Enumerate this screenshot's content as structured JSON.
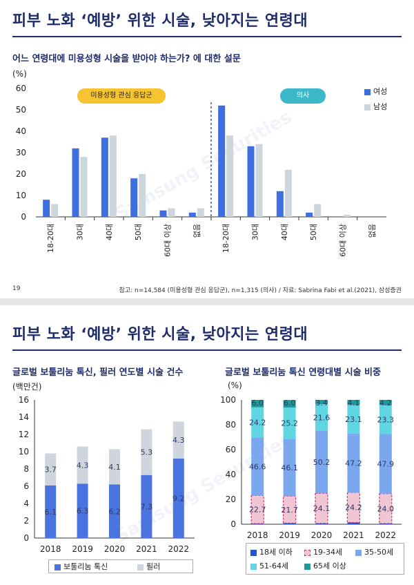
{
  "slide1": {
    "title": "피부 노화 ‘예방’ 위한 시술, 낮아지는 연령대",
    "page_number": "19",
    "footnote": "참고: n=14,584 (미용성형 관심 응답군), n=1,315 (의사) / 자료: Sabrina Fabi et al.(2021), 삼성증권",
    "watermark": "Samsung Securities"
  },
  "slide2": {
    "title": "피부 노화 ‘예방’ 위한 시술, 낮아지는 연령대",
    "watermark": "Samsung Securities"
  },
  "colors": {
    "female": "#3d6fe0",
    "male": "#cdd6dd",
    "botox": "#4a73e0",
    "filler": "#cfd5dc",
    "age_18_under": "#1f56c9",
    "age_19_34": "#f0c6d4",
    "age_35_50": "#7aa7ee",
    "age_51_64": "#5fd6e2",
    "age_65_plus": "#1a9d96",
    "pill_left": "#f5c430",
    "pill_right": "#3cb8c9"
  },
  "chart_data": [
    {
      "type": "bar",
      "title": "어느 연령대에 미용성형 시술을 받아야 하는가? 에 대한 설문",
      "ylabel": "(%)",
      "ylim": [
        0,
        60
      ],
      "yticks": [
        0,
        10,
        20,
        30,
        40,
        50,
        60
      ],
      "groups": [
        {
          "label": "미용성형 관심 응답군",
          "categories": [
            "18-20대",
            "30대",
            "40대",
            "50대",
            "60대 이상",
            "없음"
          ]
        },
        {
          "label": "의사",
          "categories": [
            "18-20대",
            "30대",
            "40대",
            "50대",
            "60대 이상",
            "없음"
          ]
        }
      ],
      "categories": [
        "18-20대",
        "30대",
        "40대",
        "50대",
        "60대 이상",
        "없음",
        "18-20대",
        "30대",
        "40대",
        "50대",
        "60대 이상",
        "없음"
      ],
      "series": [
        {
          "name": "여성",
          "values": [
            8,
            32,
            37,
            18,
            3,
            2,
            52,
            33,
            12,
            2,
            0,
            0
          ]
        },
        {
          "name": "남성",
          "values": [
            6,
            28,
            38,
            20,
            4,
            4,
            38,
            34,
            22,
            6,
            1,
            0
          ]
        }
      ],
      "legend_position": "top-right"
    },
    {
      "type": "bar",
      "stacked": true,
      "title": "글로벌 보툴리눔 톡신, 필러 연도별 시술 건수",
      "ylabel": "(백만건)",
      "ylim": [
        0,
        16
      ],
      "yticks": [
        0,
        2,
        4,
        6,
        8,
        10,
        12,
        14,
        16
      ],
      "categories": [
        "2018",
        "2019",
        "2020",
        "2021",
        "2022"
      ],
      "series": [
        {
          "name": "보툴리눔 톡신",
          "values": [
            6.1,
            6.3,
            6.2,
            7.3,
            9.2
          ]
        },
        {
          "name": "필러",
          "values": [
            3.7,
            4.3,
            4.1,
            5.3,
            4.3
          ]
        }
      ],
      "labels": {
        "보툴리눔 톡신": [
          "6.1",
          "6.3",
          "6.2",
          "7.3",
          "9.2"
        ],
        "필러": [
          "3.7",
          "4.3",
          "4.1",
          "5.3",
          "4.3"
        ]
      },
      "legend_position": "bottom"
    },
    {
      "type": "bar",
      "stacked": true,
      "title": "글로벌 보툴리눔 톡신 연령대별 시술 비중",
      "ylabel": "(%)",
      "ylim": [
        0,
        100
      ],
      "yticks": [
        0,
        20,
        40,
        60,
        80,
        100
      ],
      "categories": [
        "2018",
        "2019",
        "2020",
        "2021",
        "2022"
      ],
      "series": [
        {
          "name": "18세 이하",
          "values": [
            0.5,
            0.9,
            0.7,
            1.4,
            0.6
          ]
        },
        {
          "name": "19-34세",
          "values": [
            22.7,
            21.7,
            24.1,
            24.2,
            24.0
          ]
        },
        {
          "name": "35-50세",
          "values": [
            46.6,
            46.1,
            50.2,
            47.2,
            47.9
          ]
        },
        {
          "name": "51-64세",
          "values": [
            24.2,
            25.2,
            21.6,
            23.1,
            23.3
          ]
        },
        {
          "name": "65세 이상",
          "values": [
            6.0,
            6.0,
            3.4,
            4.1,
            4.2
          ]
        }
      ],
      "labels": {
        "19-34세": [
          "22.7",
          "21.7",
          "24.1",
          "24.2",
          "24.0"
        ],
        "35-50세": [
          "46.6",
          "46.1",
          "50.2",
          "47.2",
          "47.9"
        ],
        "51-64세": [
          "24.2",
          "25.2",
          "21.6",
          "23.1",
          "23.3"
        ],
        "65세 이상": [
          "6.0",
          "6.0",
          "3.4",
          "4.1",
          "4.2"
        ]
      },
      "legend_position": "bottom"
    }
  ]
}
